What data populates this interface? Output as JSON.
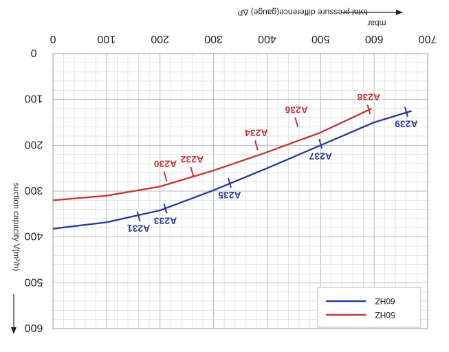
{
  "chart_data": {
    "type": "line",
    "title": "",
    "xlabel": "total pressure difference(gauge) ΔP",
    "xunit": "mbar",
    "ylabel": "suction capacity V(m³/h)",
    "x_ticks": [
      0,
      100,
      200,
      300,
      400,
      500,
      600,
      700
    ],
    "y_ticks": [
      0,
      100,
      200,
      300,
      400,
      500,
      600
    ],
    "xlim": [
      0,
      700
    ],
    "ylim": [
      0,
      600
    ],
    "x_axis_position": "top",
    "y_axis_inverted": true,
    "grid": true,
    "legend_position": "bottom-right",
    "series": [
      {
        "name": "60HZ",
        "color": "#2b3a9c",
        "points": [
          [
            0,
            382
          ],
          [
            100,
            368
          ],
          [
            200,
            342
          ],
          [
            300,
            298
          ],
          [
            400,
            250
          ],
          [
            500,
            200
          ],
          [
            600,
            150
          ],
          [
            670,
            125
          ]
        ],
        "labels": [
          {
            "text": "A231",
            "x": 160,
            "y": 355
          },
          {
            "text": "A233",
            "x": 210,
            "y": 338
          },
          {
            "text": "A235",
            "x": 330,
            "y": 282
          },
          {
            "text": "A237",
            "x": 500,
            "y": 197
          },
          {
            "text": "A239",
            "x": 660,
            "y": 127
          }
        ]
      },
      {
        "name": "50HZ",
        "color": "#c0393b",
        "points": [
          [
            0,
            320
          ],
          [
            100,
            310
          ],
          [
            200,
            290
          ],
          [
            300,
            255
          ],
          [
            400,
            215
          ],
          [
            500,
            172
          ],
          [
            595,
            120
          ]
        ],
        "labels": [
          {
            "text": "A230",
            "x": 210,
            "y": 268
          },
          {
            "text": "A232",
            "x": 260,
            "y": 258
          },
          {
            "text": "A234",
            "x": 380,
            "y": 200
          },
          {
            "text": "A236",
            "x": 455,
            "y": 150
          },
          {
            "text": "A238",
            "x": 590,
            "y": 122
          }
        ]
      }
    ]
  }
}
